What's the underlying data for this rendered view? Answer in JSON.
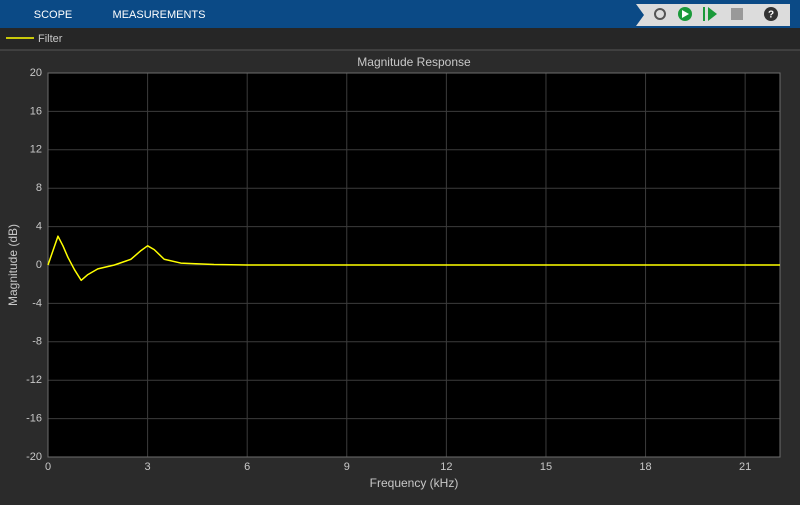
{
  "toolbar": {
    "tabs": [
      "SCOPE",
      "MEASUREMENTS"
    ]
  },
  "chart_data": {
    "type": "line",
    "title": "Magnitude Response",
    "x_label": "Frequency (kHz)",
    "y_label": "Magnitude (dB)",
    "x": [
      0,
      0.15,
      0.3,
      0.45,
      0.6,
      0.8,
      1.0,
      1.2,
      1.5,
      2.0,
      2.5,
      2.8,
      3.0,
      3.2,
      3.5,
      4,
      5,
      6,
      10,
      15,
      22.05
    ],
    "series": [
      {
        "name": "Filter",
        "color": "#ffff00",
        "values": [
          0,
          1.5,
          3,
          2,
          0.8,
          -0.5,
          -1.6,
          -1.0,
          -0.4,
          0,
          0.6,
          1.5,
          2,
          1.6,
          0.6,
          0.2,
          0.05,
          0,
          0,
          0,
          0
        ]
      }
    ],
    "xlim": [
      0,
      22.05
    ],
    "xticks": [
      0,
      3,
      6,
      9,
      12,
      15,
      18,
      21
    ],
    "ylim": [
      -20,
      20
    ],
    "yticks": [
      -20,
      -16,
      -12,
      -8,
      -4,
      0,
      4,
      8,
      12,
      16,
      20
    ],
    "grid": true
  }
}
